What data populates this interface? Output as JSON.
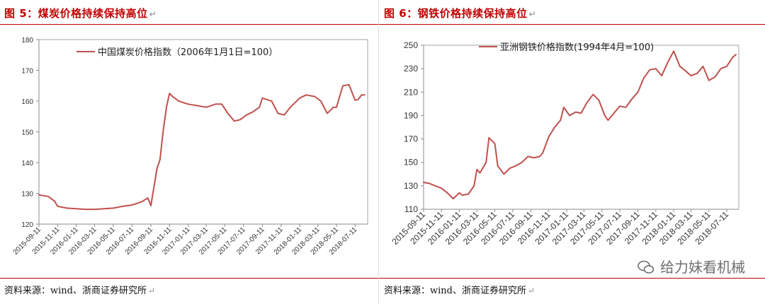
{
  "figures": [
    {
      "title": "图 5：煤炭价格持续保持高位",
      "source": "资料来源：wind、浙商证券研究所"
    },
    {
      "title": "图 6：钢铁价格持续保持高位",
      "source": "资料来源：wind、浙商证券研究所"
    }
  ],
  "watermark": "给力妹看机械",
  "colors": {
    "line": "#c0504d",
    "title": "#c00000"
  },
  "chart_data": [
    {
      "type": "line",
      "ylim": [
        120,
        180
      ],
      "yticks": [
        120,
        130,
        140,
        150,
        160,
        170,
        180
      ],
      "x_tick_labels": [
        "2015-09-11",
        "2015-11-11",
        "2016-01-11",
        "2016-03-11",
        "2016-05-11",
        "2016-07-11",
        "2016-09-11",
        "2016-11-11",
        "2017-01-11",
        "2017-03-11",
        "2017-05-11",
        "2017-07-11",
        "2017-09-11",
        "2017-11-11",
        "2018-01-11",
        "2018-03-11",
        "2018-05-11",
        "2018-07-11"
      ],
      "legend_position": "top-center",
      "grid": false,
      "series": [
        {
          "name": "中国煤炭价格指数（2006年1月1日=100）",
          "color": "#c0504d",
          "x": [
            "2015-09-11",
            "2015-10-11",
            "2015-11-01",
            "2015-11-11",
            "2015-12-11",
            "2016-01-11",
            "2016-02-11",
            "2016-03-11",
            "2016-04-11",
            "2016-05-11",
            "2016-06-11",
            "2016-07-11",
            "2016-08-11",
            "2016-09-01",
            "2016-09-11",
            "2016-09-21",
            "2016-10-01",
            "2016-10-11",
            "2016-10-21",
            "2016-11-01",
            "2016-11-11",
            "2016-11-21",
            "2016-12-11",
            "2017-01-11",
            "2017-02-11",
            "2017-03-11",
            "2017-04-11",
            "2017-05-01",
            "2017-05-21",
            "2017-06-11",
            "2017-07-01",
            "2017-07-21",
            "2017-08-11",
            "2017-09-01",
            "2017-09-11",
            "2017-10-11",
            "2017-11-01",
            "2017-11-21",
            "2017-12-11",
            "2018-01-11",
            "2018-02-01",
            "2018-03-01",
            "2018-03-21",
            "2018-04-11",
            "2018-05-01",
            "2018-05-11",
            "2018-06-01",
            "2018-06-21",
            "2018-07-11",
            "2018-07-21",
            "2018-08-01",
            "2018-08-11"
          ],
          "values": [
            129.5,
            129.0,
            127.5,
            125.8,
            125.2,
            125.0,
            124.8,
            124.8,
            125.0,
            125.2,
            125.8,
            126.2,
            127.2,
            128.5,
            126.0,
            132.0,
            138.0,
            141.0,
            150.0,
            158.0,
            162.5,
            161.5,
            160.0,
            159.0,
            158.5,
            158.0,
            159.0,
            159.0,
            156.0,
            153.5,
            154.0,
            155.5,
            156.5,
            158.0,
            161.0,
            160.0,
            156.0,
            155.5,
            158.0,
            161.0,
            162.0,
            161.5,
            160.0,
            156.0,
            158.0,
            158.0,
            165.0,
            165.3,
            160.3,
            160.5,
            162.0,
            162.0
          ]
        }
      ]
    },
    {
      "type": "line",
      "ylim": [
        110,
        250
      ],
      "yticks": [
        110,
        130,
        150,
        170,
        190,
        210,
        230,
        250
      ],
      "x_tick_labels": [
        "2015-09-11",
        "2015-11-11",
        "2016-01-11",
        "2016-03-11",
        "2016-05-11",
        "2016-07-11",
        "2016-09-11",
        "2016-11-11",
        "2017-01-11",
        "2017-03-11",
        "2017-05-11",
        "2017-07-11",
        "2017-09-11",
        "2017-11-11",
        "2018-01-11",
        "2018-03-11",
        "2018-05-11",
        "2018-07-11"
      ],
      "legend_position": "top-center",
      "grid": false,
      "series": [
        {
          "name": "亚洲钢铁价格指数(1994年4月=100)",
          "color": "#c0504d",
          "x": [
            "2015-09-11",
            "2015-10-01",
            "2015-10-21",
            "2015-11-11",
            "2015-12-01",
            "2015-12-21",
            "2016-01-11",
            "2016-01-21",
            "2016-02-11",
            "2016-03-01",
            "2016-03-11",
            "2016-03-21",
            "2016-04-11",
            "2016-04-21",
            "2016-05-11",
            "2016-05-21",
            "2016-06-11",
            "2016-07-01",
            "2016-07-21",
            "2016-08-11",
            "2016-09-01",
            "2016-09-21",
            "2016-10-11",
            "2016-10-21",
            "2016-11-11",
            "2016-12-01",
            "2016-12-21",
            "2017-01-01",
            "2017-01-21",
            "2017-02-11",
            "2017-03-01",
            "2017-03-21",
            "2017-04-11",
            "2017-05-01",
            "2017-05-21",
            "2017-06-01",
            "2017-06-21",
            "2017-07-11",
            "2017-08-01",
            "2017-08-21",
            "2017-09-11",
            "2017-10-01",
            "2017-10-21",
            "2017-11-11",
            "2017-12-01",
            "2017-12-21",
            "2018-01-11",
            "2018-02-01",
            "2018-02-21",
            "2018-03-11",
            "2018-04-01",
            "2018-04-21",
            "2018-05-11",
            "2018-06-01",
            "2018-06-21",
            "2018-07-11",
            "2018-08-01",
            "2018-08-11"
          ],
          "values": [
            133,
            132,
            130,
            128,
            124,
            119,
            124,
            122,
            123,
            130,
            144,
            141,
            150,
            171,
            166,
            147,
            140,
            145,
            147,
            150,
            155,
            154,
            155,
            158,
            172,
            180,
            186,
            197,
            190,
            193,
            192,
            201,
            208,
            203,
            190,
            186,
            192,
            198,
            197,
            204,
            210,
            222,
            229,
            230,
            224,
            235,
            245,
            232,
            228,
            224,
            226,
            232,
            220,
            223,
            230,
            232,
            240,
            242
          ]
        }
      ]
    }
  ]
}
